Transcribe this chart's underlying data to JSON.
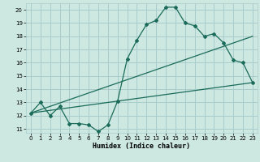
{
  "xlabel": "Humidex (Indice chaleur)",
  "bg_color": "#cce8e0",
  "grid_color": "#aacccc",
  "line_color": "#1a6b5a",
  "xlim": [
    -0.5,
    23.5
  ],
  "ylim": [
    10.7,
    20.5
  ],
  "yticks": [
    11,
    12,
    13,
    14,
    15,
    16,
    17,
    18,
    19,
    20
  ],
  "xticks": [
    0,
    1,
    2,
    3,
    4,
    5,
    6,
    7,
    8,
    9,
    10,
    11,
    12,
    13,
    14,
    15,
    16,
    17,
    18,
    19,
    20,
    21,
    22,
    23
  ],
  "line1_x": [
    0,
    1,
    2,
    3,
    4,
    5,
    6,
    7,
    8,
    9,
    10,
    11,
    12,
    13,
    14,
    15,
    16,
    17,
    18,
    19,
    20,
    21,
    22,
    23
  ],
  "line1_y": [
    12.2,
    13.0,
    12.0,
    12.7,
    11.4,
    11.4,
    11.3,
    10.8,
    11.3,
    13.1,
    16.3,
    17.7,
    18.9,
    19.2,
    20.2,
    20.2,
    19.0,
    18.8,
    18.0,
    18.2,
    17.5,
    16.2,
    16.0,
    14.5
  ],
  "line2_x": [
    0,
    23
  ],
  "line2_y": [
    12.2,
    18.0
  ],
  "line3_x": [
    0,
    23
  ],
  "line3_y": [
    12.2,
    14.5
  ]
}
